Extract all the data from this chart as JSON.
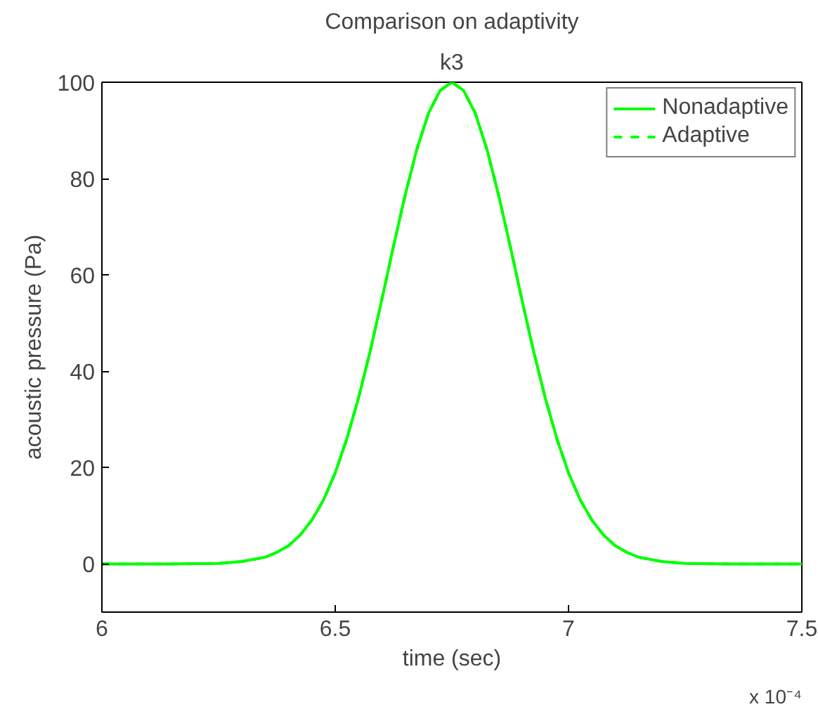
{
  "chart_data": {
    "type": "line",
    "title": "Comparison on adaptivity",
    "subtitle": "k3",
    "xlabel": "time (sec)",
    "ylabel": "acoustic pressure (Pa)",
    "annotations": [
      "x 10⁻⁴"
    ],
    "x": [
      6.0,
      6.15,
      6.25,
      6.3,
      6.35,
      6.375,
      6.4,
      6.425,
      6.45,
      6.475,
      6.5,
      6.525,
      6.55,
      6.575,
      6.6,
      6.625,
      6.65,
      6.675,
      6.7,
      6.725,
      6.75,
      6.775,
      6.8,
      6.825,
      6.85,
      6.875,
      6.9,
      6.925,
      6.95,
      6.975,
      7.0,
      7.025,
      7.05,
      7.075,
      7.1,
      7.125,
      7.15,
      7.2,
      7.25,
      7.35,
      7.5
    ],
    "series": [
      {
        "name": "Nonadaptive",
        "color": "#00ff00",
        "line_style": "solid",
        "values": [
          0,
          0,
          0.1,
          0.5,
          1.4,
          2.4,
          3.8,
          6.0,
          9.1,
          13.3,
          18.9,
          26.0,
          34.5,
          44.2,
          54.9,
          66.0,
          76.6,
          86.1,
          93.6,
          98.3,
          100,
          98.3,
          93.6,
          86.1,
          76.6,
          66.0,
          54.9,
          44.2,
          34.5,
          26.0,
          18.9,
          13.3,
          9.1,
          6.0,
          3.8,
          2.4,
          1.4,
          0.5,
          0.1,
          0,
          0
        ]
      },
      {
        "name": "Adaptive",
        "color": "#00ff00",
        "line_style": "dashed",
        "values": [
          0,
          0,
          0.1,
          0.5,
          1.4,
          2.4,
          3.8,
          6.0,
          9.1,
          13.3,
          18.9,
          26.0,
          34.5,
          44.2,
          54.9,
          66.0,
          76.6,
          86.1,
          93.6,
          98.3,
          100,
          98.3,
          93.6,
          86.1,
          76.6,
          66.0,
          54.9,
          44.2,
          34.5,
          26.0,
          18.9,
          13.3,
          9.1,
          6.0,
          3.8,
          2.4,
          1.4,
          0.5,
          0.1,
          0,
          0
        ]
      }
    ],
    "xlim": [
      6,
      7.5
    ],
    "xticks": [
      6,
      6.5,
      7,
      7.5
    ],
    "ylim": [
      -10,
      100
    ],
    "yticks": [
      0,
      20,
      40,
      60,
      80,
      100
    ],
    "grid": false,
    "legend": "top right",
    "marker": "none"
  }
}
